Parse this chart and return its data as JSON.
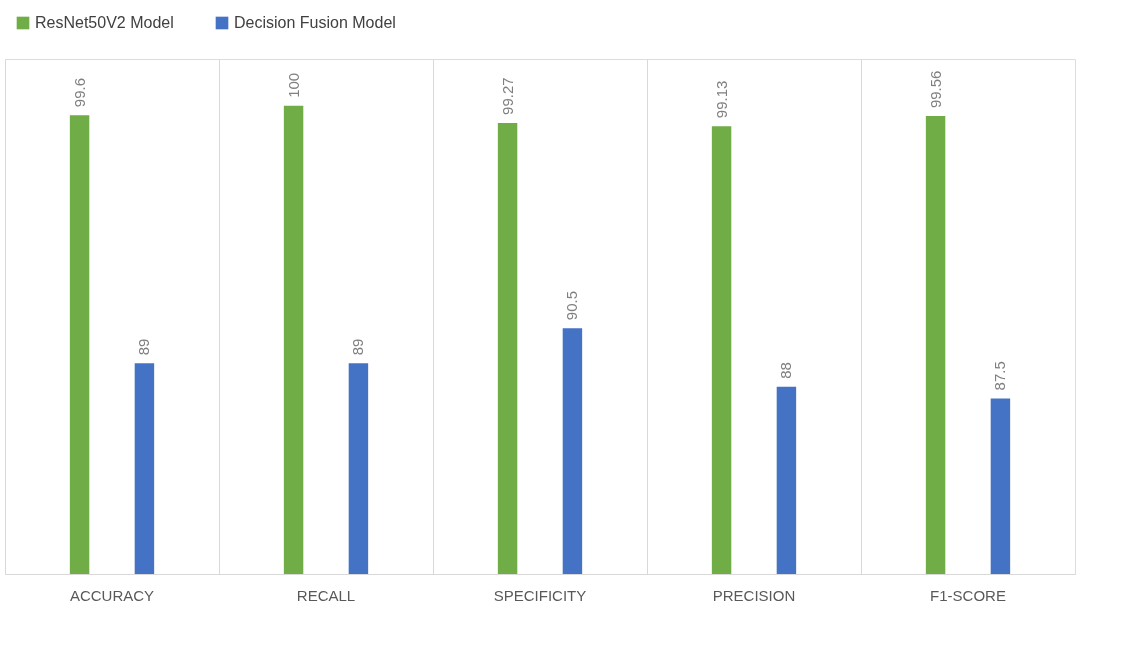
{
  "chart_data": {
    "type": "bar",
    "categories": [
      "ACCURACY",
      "RECALL",
      "SPECIFICITY",
      "PRECISION",
      "F1-SCORE"
    ],
    "series": [
      {
        "name": "ResNet50V2 Model",
        "color": "#70ad47",
        "values": [
          99.6,
          100,
          99.27,
          99.13,
          99.56
        ]
      },
      {
        "name": "Decision Fusion Model",
        "color": "#4472c4",
        "values": [
          89,
          89,
          90.5,
          88,
          87.5
        ]
      }
    ],
    "ylim": [
      80,
      102
    ],
    "data_labels": true,
    "legend": "top",
    "grid": "x",
    "tick_labels": "x"
  }
}
